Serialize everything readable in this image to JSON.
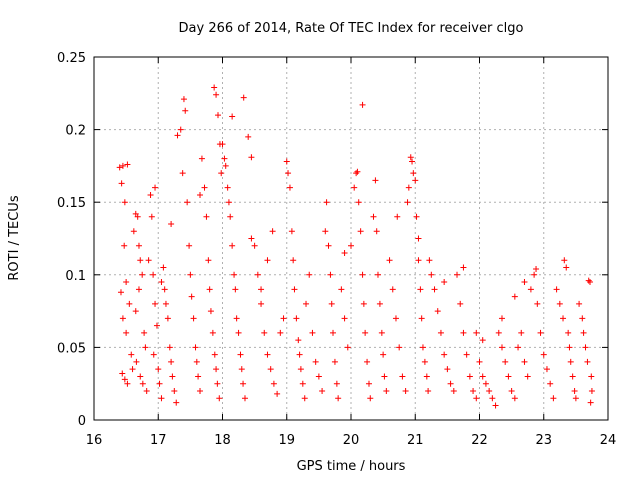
{
  "chart_data": {
    "type": "scatter",
    "title": "Day 266 of 2014, Rate Of TEC Index for receiver clgo",
    "xlabel": "GPS time / hours",
    "ylabel": "ROTI / TECUs",
    "xlim": [
      16,
      24
    ],
    "ylim": [
      0,
      0.25
    ],
    "x_ticks": [
      16,
      17,
      18,
      19,
      20,
      21,
      22,
      23,
      24
    ],
    "x_tick_labels": [
      "16",
      "17",
      "18",
      "19",
      "20",
      "21",
      "22",
      "23",
      "24"
    ],
    "y_ticks": [
      0,
      0.05,
      0.1,
      0.15,
      0.2,
      0.25
    ],
    "y_tick_labels": [
      "0",
      "0.05",
      "0.1",
      "0.15",
      "0.2",
      "0.25"
    ],
    "grid": true,
    "marker": "+",
    "color": "#ff0000",
    "series": [
      {
        "name": "ROTI",
        "points": [
          [
            16.4,
            0.174
          ],
          [
            16.45,
            0.175
          ],
          [
            16.52,
            0.176
          ],
          [
            16.43,
            0.163
          ],
          [
            16.48,
            0.15
          ],
          [
            16.47,
            0.12
          ],
          [
            16.5,
            0.095
          ],
          [
            16.42,
            0.088
          ],
          [
            16.55,
            0.08
          ],
          [
            16.45,
            0.07
          ],
          [
            16.5,
            0.06
          ],
          [
            16.58,
            0.045
          ],
          [
            16.44,
            0.032
          ],
          [
            16.48,
            0.028
          ],
          [
            16.52,
            0.025
          ],
          [
            16.6,
            0.035
          ],
          [
            16.62,
            0.13
          ],
          [
            16.65,
            0.142
          ],
          [
            16.68,
            0.14
          ],
          [
            16.7,
            0.12
          ],
          [
            16.72,
            0.11
          ],
          [
            16.75,
            0.1
          ],
          [
            16.7,
            0.09
          ],
          [
            16.65,
            0.075
          ],
          [
            16.78,
            0.06
          ],
          [
            16.8,
            0.05
          ],
          [
            16.66,
            0.04
          ],
          [
            16.72,
            0.03
          ],
          [
            16.76,
            0.025
          ],
          [
            16.82,
            0.02
          ],
          [
            16.85,
            0.11
          ],
          [
            16.88,
            0.155
          ],
          [
            16.9,
            0.14
          ],
          [
            16.92,
            0.1
          ],
          [
            16.95,
            0.08
          ],
          [
            16.98,
            0.065
          ],
          [
            16.93,
            0.045
          ],
          [
            17.0,
            0.035
          ],
          [
            17.02,
            0.025
          ],
          [
            17.05,
            0.015
          ],
          [
            17.05,
            0.095
          ],
          [
            17.08,
            0.105
          ],
          [
            17.1,
            0.09
          ],
          [
            17.12,
            0.08
          ],
          [
            17.15,
            0.07
          ],
          [
            17.18,
            0.05
          ],
          [
            17.2,
            0.04
          ],
          [
            17.22,
            0.03
          ],
          [
            17.25,
            0.02
          ],
          [
            17.28,
            0.012
          ],
          [
            17.3,
            0.196
          ],
          [
            17.35,
            0.2
          ],
          [
            17.38,
            0.17
          ],
          [
            17.4,
            0.221
          ],
          [
            17.42,
            0.213
          ],
          [
            17.45,
            0.15
          ],
          [
            17.48,
            0.12
          ],
          [
            17.5,
            0.1
          ],
          [
            17.52,
            0.085
          ],
          [
            17.55,
            0.07
          ],
          [
            17.58,
            0.05
          ],
          [
            17.6,
            0.04
          ],
          [
            17.62,
            0.03
          ],
          [
            17.65,
            0.02
          ],
          [
            17.68,
            0.18
          ],
          [
            17.72,
            0.16
          ],
          [
            17.75,
            0.14
          ],
          [
            17.78,
            0.11
          ],
          [
            17.8,
            0.09
          ],
          [
            17.82,
            0.075
          ],
          [
            17.85,
            0.06
          ],
          [
            17.88,
            0.045
          ],
          [
            17.9,
            0.035
          ],
          [
            17.92,
            0.025
          ],
          [
            17.95,
            0.015
          ],
          [
            17.87,
            0.229
          ],
          [
            17.9,
            0.224
          ],
          [
            17.93,
            0.21
          ],
          [
            17.96,
            0.19
          ],
          [
            17.98,
            0.17
          ],
          [
            18.0,
            0.19
          ],
          [
            18.03,
            0.18
          ],
          [
            18.05,
            0.175
          ],
          [
            18.08,
            0.16
          ],
          [
            18.1,
            0.15
          ],
          [
            18.12,
            0.14
          ],
          [
            18.15,
            0.12
          ],
          [
            18.18,
            0.1
          ],
          [
            18.2,
            0.09
          ],
          [
            18.22,
            0.07
          ],
          [
            18.25,
            0.06
          ],
          [
            18.28,
            0.045
          ],
          [
            18.3,
            0.035
          ],
          [
            18.32,
            0.025
          ],
          [
            18.35,
            0.015
          ],
          [
            18.33,
            0.222
          ],
          [
            18.15,
            0.209
          ],
          [
            18.4,
            0.195
          ],
          [
            18.45,
            0.181
          ],
          [
            18.5,
            0.12
          ],
          [
            18.55,
            0.1
          ],
          [
            18.6,
            0.08
          ],
          [
            18.65,
            0.06
          ],
          [
            18.7,
            0.045
          ],
          [
            18.75,
            0.035
          ],
          [
            18.8,
            0.025
          ],
          [
            18.85,
            0.018
          ],
          [
            18.6,
            0.09
          ],
          [
            18.7,
            0.11
          ],
          [
            18.78,
            0.13
          ],
          [
            18.9,
            0.06
          ],
          [
            18.95,
            0.07
          ],
          [
            19.0,
            0.178
          ],
          [
            19.02,
            0.17
          ],
          [
            19.05,
            0.16
          ],
          [
            19.08,
            0.13
          ],
          [
            19.1,
            0.11
          ],
          [
            19.12,
            0.09
          ],
          [
            19.15,
            0.07
          ],
          [
            19.18,
            0.055
          ],
          [
            19.2,
            0.045
          ],
          [
            19.22,
            0.035
          ],
          [
            19.25,
            0.025
          ],
          [
            19.28,
            0.015
          ],
          [
            19.3,
            0.08
          ],
          [
            19.35,
            0.1
          ],
          [
            19.4,
            0.06
          ],
          [
            19.45,
            0.04
          ],
          [
            19.5,
            0.03
          ],
          [
            19.55,
            0.02
          ],
          [
            19.6,
            0.13
          ],
          [
            19.62,
            0.15
          ],
          [
            19.65,
            0.12
          ],
          [
            19.68,
            0.1
          ],
          [
            19.7,
            0.08
          ],
          [
            19.72,
            0.06
          ],
          [
            19.75,
            0.04
          ],
          [
            19.78,
            0.025
          ],
          [
            19.8,
            0.015
          ],
          [
            19.85,
            0.09
          ],
          [
            19.9,
            0.07
          ],
          [
            19.95,
            0.05
          ],
          [
            20.0,
            0.12
          ],
          [
            20.05,
            0.16
          ],
          [
            20.08,
            0.17
          ],
          [
            20.1,
            0.171
          ],
          [
            20.12,
            0.15
          ],
          [
            20.15,
            0.13
          ],
          [
            20.18,
            0.1
          ],
          [
            20.2,
            0.08
          ],
          [
            20.22,
            0.06
          ],
          [
            20.25,
            0.04
          ],
          [
            20.28,
            0.025
          ],
          [
            20.3,
            0.015
          ],
          [
            20.18,
            0.217
          ],
          [
            20.35,
            0.14
          ],
          [
            20.38,
            0.165
          ],
          [
            20.4,
            0.13
          ],
          [
            20.42,
            0.1
          ],
          [
            20.45,
            0.08
          ],
          [
            20.48,
            0.06
          ],
          [
            20.5,
            0.045
          ],
          [
            20.52,
            0.03
          ],
          [
            20.55,
            0.02
          ],
          [
            20.6,
            0.11
          ],
          [
            20.65,
            0.09
          ],
          [
            20.7,
            0.07
          ],
          [
            20.75,
            0.05
          ],
          [
            20.8,
            0.03
          ],
          [
            20.85,
            0.02
          ],
          [
            20.88,
            0.15
          ],
          [
            20.9,
            0.16
          ],
          [
            20.93,
            0.181
          ],
          [
            20.95,
            0.178
          ],
          [
            20.97,
            0.17
          ],
          [
            21.0,
            0.165
          ],
          [
            21.02,
            0.14
          ],
          [
            21.05,
            0.11
          ],
          [
            21.08,
            0.09
          ],
          [
            21.1,
            0.07
          ],
          [
            21.12,
            0.05
          ],
          [
            21.15,
            0.04
          ],
          [
            21.18,
            0.03
          ],
          [
            21.2,
            0.02
          ],
          [
            21.22,
            0.11
          ],
          [
            21.25,
            0.1
          ],
          [
            21.3,
            0.09
          ],
          [
            21.35,
            0.075
          ],
          [
            21.4,
            0.06
          ],
          [
            21.45,
            0.045
          ],
          [
            21.5,
            0.035
          ],
          [
            21.55,
            0.025
          ],
          [
            21.6,
            0.02
          ],
          [
            21.65,
            0.1
          ],
          [
            21.7,
            0.08
          ],
          [
            21.75,
            0.06
          ],
          [
            21.8,
            0.045
          ],
          [
            21.85,
            0.03
          ],
          [
            21.9,
            0.02
          ],
          [
            21.95,
            0.015
          ],
          [
            22.0,
            0.04
          ],
          [
            22.05,
            0.03
          ],
          [
            22.1,
            0.025
          ],
          [
            22.15,
            0.02
          ],
          [
            22.2,
            0.015
          ],
          [
            22.25,
            0.01
          ],
          [
            22.3,
            0.06
          ],
          [
            22.35,
            0.05
          ],
          [
            22.4,
            0.04
          ],
          [
            22.45,
            0.03
          ],
          [
            22.5,
            0.02
          ],
          [
            22.55,
            0.015
          ],
          [
            22.6,
            0.05
          ],
          [
            22.65,
            0.06
          ],
          [
            22.7,
            0.04
          ],
          [
            22.75,
            0.03
          ],
          [
            22.8,
            0.09
          ],
          [
            22.85,
            0.1
          ],
          [
            22.88,
            0.104
          ],
          [
            22.9,
            0.08
          ],
          [
            22.95,
            0.06
          ],
          [
            23.0,
            0.045
          ],
          [
            23.05,
            0.035
          ],
          [
            23.1,
            0.025
          ],
          [
            23.15,
            0.015
          ],
          [
            23.2,
            0.09
          ],
          [
            23.25,
            0.08
          ],
          [
            23.3,
            0.07
          ],
          [
            23.32,
            0.11
          ],
          [
            23.35,
            0.105
          ],
          [
            23.38,
            0.06
          ],
          [
            23.4,
            0.05
          ],
          [
            23.42,
            0.04
          ],
          [
            23.45,
            0.03
          ],
          [
            23.48,
            0.02
          ],
          [
            23.5,
            0.015
          ],
          [
            23.55,
            0.08
          ],
          [
            23.6,
            0.07
          ],
          [
            23.62,
            0.06
          ],
          [
            23.65,
            0.05
          ],
          [
            23.68,
            0.04
          ],
          [
            23.7,
            0.096
          ],
          [
            23.72,
            0.095
          ],
          [
            23.74,
            0.03
          ],
          [
            23.75,
            0.02
          ],
          [
            23.73,
            0.012
          ],
          [
            22.7,
            0.095
          ],
          [
            22.55,
            0.085
          ],
          [
            22.35,
            0.07
          ],
          [
            21.95,
            0.06
          ],
          [
            22.05,
            0.055
          ],
          [
            21.75,
            0.105
          ],
          [
            21.45,
            0.095
          ],
          [
            21.05,
            0.125
          ],
          [
            20.72,
            0.14
          ],
          [
            19.9,
            0.115
          ],
          [
            18.45,
            0.125
          ],
          [
            17.2,
            0.135
          ],
          [
            16.95,
            0.16
          ],
          [
            17.65,
            0.155
          ]
        ]
      }
    ]
  }
}
